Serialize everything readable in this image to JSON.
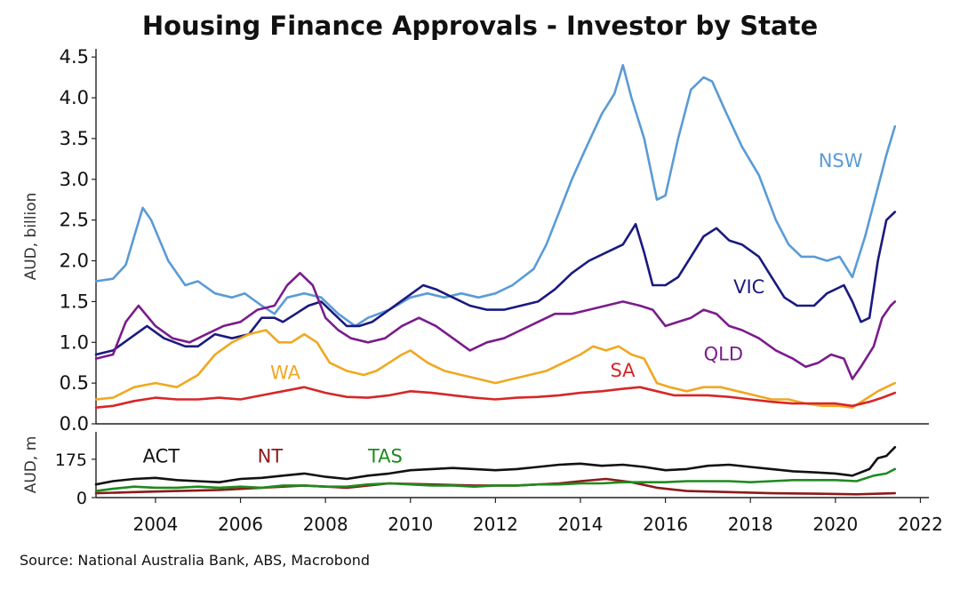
{
  "chart_data": {
    "title": "Housing Finance Approvals - Investor by State",
    "source": "Source: National Australia Bank, ABS, Macrobond",
    "x_ticks": [
      "2004",
      "2006",
      "2008",
      "2010",
      "2012",
      "2014",
      "2016",
      "2018",
      "2020",
      "2022"
    ],
    "xlim": [
      2002.6,
      2022.2
    ],
    "panels": [
      {
        "type": "line",
        "ylabel": "AUD, billion",
        "ylim": [
          0,
          4.6
        ],
        "y_ticks": [
          "0.0",
          "0.5",
          "1.0",
          "1.5",
          "2.0",
          "2.5",
          "3.0",
          "3.5",
          "4.0",
          "4.5"
        ],
        "grid": false,
        "series": [
          {
            "name": "NSW",
            "color": "#5b9bd5",
            "x": [
              2002.6,
              2003.0,
              2003.3,
              2003.5,
              2003.7,
              2003.9,
              2004.3,
              2004.7,
              2005.0,
              2005.4,
              2005.8,
              2006.1,
              2006.5,
              2006.8,
              2007.1,
              2007.5,
              2007.9,
              2008.3,
              2008.7,
              2009.0,
              2009.5,
              2010.0,
              2010.4,
              2010.8,
              2011.2,
              2011.6,
              2012.0,
              2012.4,
              2012.9,
              2013.2,
              2013.5,
              2013.8,
              2014.1,
              2014.5,
              2014.8,
              2015.0,
              2015.2,
              2015.5,
              2015.8,
              2016.0,
              2016.3,
              2016.6,
              2016.9,
              2017.1,
              2017.4,
              2017.8,
              2018.2,
              2018.6,
              2018.9,
              2019.2,
              2019.5,
              2019.8,
              2020.1,
              2020.4,
              2020.7,
              2021.0,
              2021.2,
              2021.4
            ],
            "y": [
              1.75,
              1.78,
              1.95,
              2.3,
              2.65,
              2.5,
              2.0,
              1.7,
              1.75,
              1.6,
              1.55,
              1.6,
              1.45,
              1.35,
              1.55,
              1.6,
              1.55,
              1.35,
              1.2,
              1.3,
              1.4,
              1.55,
              1.6,
              1.55,
              1.6,
              1.55,
              1.6,
              1.7,
              1.9,
              2.2,
              2.6,
              3.0,
              3.35,
              3.8,
              4.05,
              4.4,
              4.0,
              3.5,
              2.75,
              2.8,
              3.5,
              4.1,
              4.25,
              4.2,
              3.85,
              3.4,
              3.05,
              2.5,
              2.2,
              2.05,
              2.05,
              2.0,
              2.05,
              1.8,
              2.3,
              2.9,
              3.3,
              3.65
            ]
          },
          {
            "name": "VIC",
            "color": "#1a1a80",
            "x": [
              2002.6,
              2003.0,
              2003.4,
              2003.8,
              2004.2,
              2004.7,
              2005.0,
              2005.4,
              2005.8,
              2006.2,
              2006.5,
              2006.8,
              2007.0,
              2007.3,
              2007.6,
              2007.9,
              2008.2,
              2008.5,
              2008.8,
              2009.1,
              2009.5,
              2009.9,
              2010.3,
              2010.6,
              2011.0,
              2011.4,
              2011.8,
              2012.2,
              2012.6,
              2013.0,
              2013.4,
              2013.8,
              2014.2,
              2014.6,
              2015.0,
              2015.3,
              2015.5,
              2015.7,
              2016.0,
              2016.3,
              2016.6,
              2016.9,
              2017.2,
              2017.5,
              2017.8,
              2018.2,
              2018.5,
              2018.8,
              2019.1,
              2019.5,
              2019.8,
              2020.2,
              2020.4,
              2020.6,
              2020.8,
              2021.0,
              2021.2,
              2021.4
            ],
            "y": [
              0.85,
              0.9,
              1.05,
              1.2,
              1.05,
              0.95,
              0.95,
              1.1,
              1.05,
              1.1,
              1.3,
              1.3,
              1.25,
              1.35,
              1.45,
              1.5,
              1.35,
              1.2,
              1.2,
              1.25,
              1.4,
              1.55,
              1.7,
              1.65,
              1.55,
              1.45,
              1.4,
              1.4,
              1.45,
              1.5,
              1.65,
              1.85,
              2.0,
              2.1,
              2.2,
              2.45,
              2.1,
              1.7,
              1.7,
              1.8,
              2.05,
              2.3,
              2.4,
              2.25,
              2.2,
              2.05,
              1.8,
              1.55,
              1.45,
              1.45,
              1.6,
              1.7,
              1.5,
              1.25,
              1.3,
              2.0,
              2.5,
              2.6
            ]
          },
          {
            "name": "QLD",
            "color": "#7b1c8c",
            "x": [
              2002.6,
              2003.0,
              2003.3,
              2003.6,
              2004.0,
              2004.4,
              2004.8,
              2005.2,
              2005.6,
              2006.0,
              2006.4,
              2006.8,
              2007.1,
              2007.4,
              2007.7,
              2008.0,
              2008.3,
              2008.6,
              2009.0,
              2009.4,
              2009.8,
              2010.2,
              2010.6,
              2011.0,
              2011.4,
              2011.8,
              2012.2,
              2012.6,
              2013.0,
              2013.4,
              2013.8,
              2014.2,
              2014.6,
              2015.0,
              2015.4,
              2015.7,
              2016.0,
              2016.3,
              2016.6,
              2016.9,
              2017.2,
              2017.5,
              2017.8,
              2018.2,
              2018.6,
              2019.0,
              2019.3,
              2019.6,
              2019.9,
              2020.2,
              2020.4,
              2020.6,
              2020.9,
              2021.1,
              2021.3,
              2021.4
            ],
            "y": [
              0.8,
              0.85,
              1.25,
              1.45,
              1.2,
              1.05,
              1.0,
              1.1,
              1.2,
              1.25,
              1.4,
              1.45,
              1.7,
              1.85,
              1.7,
              1.3,
              1.15,
              1.05,
              1.0,
              1.05,
              1.2,
              1.3,
              1.2,
              1.05,
              0.9,
              1.0,
              1.05,
              1.15,
              1.25,
              1.35,
              1.35,
              1.4,
              1.45,
              1.5,
              1.45,
              1.4,
              1.2,
              1.25,
              1.3,
              1.4,
              1.35,
              1.2,
              1.15,
              1.05,
              0.9,
              0.8,
              0.7,
              0.75,
              0.85,
              0.8,
              0.55,
              0.7,
              0.95,
              1.3,
              1.45,
              1.5
            ]
          },
          {
            "name": "WA",
            "color": "#f0a821",
            "x": [
              2002.6,
              2003.0,
              2003.5,
              2004.0,
              2004.5,
              2005.0,
              2005.4,
              2005.8,
              2006.2,
              2006.6,
              2006.9,
              2007.2,
              2007.5,
              2007.8,
              2008.1,
              2008.5,
              2008.9,
              2009.2,
              2009.5,
              2009.8,
              2010.0,
              2010.4,
              2010.8,
              2011.2,
              2011.6,
              2012.0,
              2012.4,
              2012.8,
              2013.2,
              2013.6,
              2014.0,
              2014.3,
              2014.6,
              2014.9,
              2015.2,
              2015.5,
              2015.8,
              2016.1,
              2016.5,
              2016.9,
              2017.3,
              2017.7,
              2018.1,
              2018.5,
              2018.9,
              2019.3,
              2019.7,
              2020.1,
              2020.4,
              2020.7,
              2021.0,
              2021.4
            ],
            "y": [
              0.3,
              0.32,
              0.45,
              0.5,
              0.45,
              0.6,
              0.85,
              1.0,
              1.1,
              1.15,
              1.0,
              1.0,
              1.1,
              1.0,
              0.75,
              0.65,
              0.6,
              0.65,
              0.75,
              0.85,
              0.9,
              0.75,
              0.65,
              0.6,
              0.55,
              0.5,
              0.55,
              0.6,
              0.65,
              0.75,
              0.85,
              0.95,
              0.9,
              0.95,
              0.85,
              0.8,
              0.5,
              0.45,
              0.4,
              0.45,
              0.45,
              0.4,
              0.35,
              0.3,
              0.3,
              0.25,
              0.22,
              0.22,
              0.2,
              0.3,
              0.4,
              0.5
            ]
          },
          {
            "name": "SA",
            "color": "#d62728",
            "x": [
              2002.6,
              2003.0,
              2003.5,
              2004.0,
              2004.5,
              2005.0,
              2005.5,
              2006.0,
              2006.5,
              2007.0,
              2007.5,
              2008.0,
              2008.5,
              2009.0,
              2009.5,
              2010.0,
              2010.5,
              2011.0,
              2011.5,
              2012.0,
              2012.5,
              2013.0,
              2013.5,
              2014.0,
              2014.5,
              2015.0,
              2015.4,
              2015.8,
              2016.2,
              2016.6,
              2017.0,
              2017.5,
              2018.0,
              2018.5,
              2019.0,
              2019.5,
              2020.0,
              2020.4,
              2020.8,
              2021.1,
              2021.4
            ],
            "y": [
              0.2,
              0.22,
              0.28,
              0.32,
              0.3,
              0.3,
              0.32,
              0.3,
              0.35,
              0.4,
              0.45,
              0.38,
              0.33,
              0.32,
              0.35,
              0.4,
              0.38,
              0.35,
              0.32,
              0.3,
              0.32,
              0.33,
              0.35,
              0.38,
              0.4,
              0.43,
              0.45,
              0.4,
              0.35,
              0.35,
              0.35,
              0.33,
              0.3,
              0.27,
              0.25,
              0.25,
              0.25,
              0.22,
              0.27,
              0.32,
              0.38
            ]
          }
        ]
      },
      {
        "type": "line",
        "ylabel": "AUD, m",
        "ylim": [
          0,
          300
        ],
        "y_ticks": [
          "0",
          "175"
        ],
        "y_tick_values": [
          0,
          175
        ],
        "grid": false,
        "series": [
          {
            "name": "ACT",
            "color": "#111111",
            "x": [
              2002.6,
              2003.0,
              2003.5,
              2004.0,
              2004.5,
              2005.0,
              2005.5,
              2006.0,
              2006.5,
              2007.0,
              2007.5,
              2008.0,
              2008.5,
              2009.0,
              2009.5,
              2010.0,
              2010.5,
              2011.0,
              2011.5,
              2012.0,
              2012.5,
              2013.0,
              2013.5,
              2014.0,
              2014.5,
              2015.0,
              2015.5,
              2016.0,
              2016.5,
              2017.0,
              2017.5,
              2018.0,
              2018.5,
              2019.0,
              2019.5,
              2020.0,
              2020.4,
              2020.8,
              2021.0,
              2021.2,
              2021.4
            ],
            "y": [
              60,
              75,
              85,
              90,
              80,
              75,
              70,
              85,
              90,
              100,
              110,
              95,
              85,
              100,
              110,
              125,
              130,
              135,
              130,
              125,
              130,
              140,
              150,
              155,
              145,
              150,
              140,
              125,
              130,
              145,
              150,
              140,
              130,
              120,
              115,
              110,
              100,
              130,
              180,
              190,
              230
            ]
          },
          {
            "name": "NT",
            "color": "#8b1a1a",
            "x": [
              2002.6,
              2003.5,
              2004.5,
              2005.5,
              2006.5,
              2007.5,
              2008.5,
              2009.5,
              2010.5,
              2011.5,
              2012.5,
              2013.5,
              2014.0,
              2014.6,
              2015.2,
              2015.8,
              2016.5,
              2017.5,
              2018.5,
              2019.5,
              2020.5,
              2021.4
            ],
            "y": [
              20,
              25,
              30,
              35,
              45,
              55,
              45,
              65,
              60,
              55,
              55,
              65,
              75,
              85,
              70,
              45,
              30,
              25,
              20,
              18,
              15,
              20
            ]
          },
          {
            "name": "TAS",
            "color": "#1f8a1f",
            "x": [
              2002.6,
              2003.0,
              2003.5,
              2004.0,
              2004.5,
              2005.0,
              2005.5,
              2006.0,
              2006.5,
              2007.0,
              2007.5,
              2008.0,
              2008.5,
              2009.0,
              2009.5,
              2010.0,
              2010.5,
              2011.0,
              2011.5,
              2012.0,
              2012.5,
              2013.0,
              2013.5,
              2014.0,
              2014.5,
              2015.0,
              2015.5,
              2016.0,
              2016.5,
              2017.0,
              2017.5,
              2018.0,
              2018.5,
              2019.0,
              2019.5,
              2020.0,
              2020.5,
              2020.9,
              2021.2,
              2021.4
            ],
            "y": [
              30,
              40,
              50,
              45,
              45,
              50,
              45,
              50,
              45,
              55,
              55,
              50,
              50,
              60,
              65,
              60,
              55,
              55,
              50,
              55,
              55,
              60,
              60,
              65,
              65,
              70,
              70,
              70,
              75,
              75,
              75,
              70,
              75,
              80,
              80,
              80,
              75,
              100,
              110,
              130
            ]
          }
        ]
      }
    ],
    "annotations": [
      {
        "text": "NSW",
        "color": "#5b9bd5",
        "x": 2019.6,
        "y": 3.15,
        "panel": 0
      },
      {
        "text": "VIC",
        "color": "#1a1a80",
        "x": 2017.6,
        "y": 1.6,
        "panel": 0
      },
      {
        "text": "QLD",
        "color": "#7b1c8c",
        "x": 2016.9,
        "y": 0.78,
        "panel": 0
      },
      {
        "text": "WA",
        "color": "#f0a821",
        "x": 2006.7,
        "y": 0.55,
        "panel": 0
      },
      {
        "text": "SA",
        "color": "#d62728",
        "x": 2014.7,
        "y": 0.58,
        "panel": 0
      },
      {
        "text": "ACT",
        "color": "#111111",
        "x": 2003.7,
        "y": 160,
        "panel": 1
      },
      {
        "text": "NT",
        "color": "#8b1a1a",
        "x": 2006.4,
        "y": 160,
        "panel": 1
      },
      {
        "text": "TAS",
        "color": "#1f8a1f",
        "x": 2009.0,
        "y": 160,
        "panel": 1
      }
    ]
  }
}
